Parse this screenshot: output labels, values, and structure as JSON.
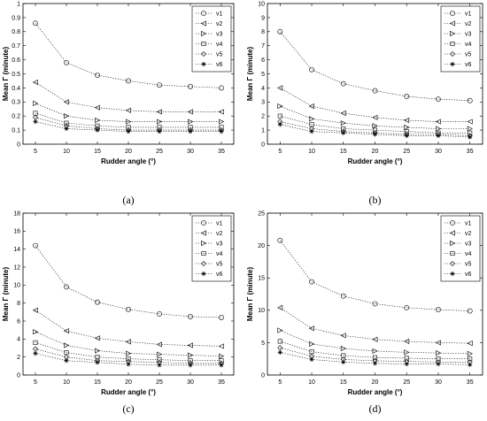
{
  "chart_data": [
    {
      "type": "line",
      "caption": "(a)",
      "xlabel": "Rudder angle (°)",
      "ylabel": "Mean Γ (minute)",
      "x": [
        5,
        10,
        15,
        20,
        25,
        30,
        35
      ],
      "xlim": [
        3,
        37
      ],
      "ylim": [
        0,
        1
      ],
      "yticks": [
        "0",
        "0.1",
        "0.2",
        "0.3",
        "0.4",
        "0.5",
        "0.6",
        "0.7",
        "0.8",
        "0.9",
        "1"
      ],
      "ytick_values": [
        0,
        0.1,
        0.2,
        0.3,
        0.4,
        0.5,
        0.6,
        0.7,
        0.8,
        0.9,
        1
      ],
      "xticks": [
        "5",
        "10",
        "15",
        "20",
        "25",
        "30",
        "35"
      ],
      "legend_position": "top-right",
      "series": [
        {
          "name": "v1",
          "marker": "circle",
          "values": [
            0.86,
            0.58,
            0.49,
            0.45,
            0.42,
            0.41,
            0.4
          ]
        },
        {
          "name": "v2",
          "marker": "triangle-left",
          "values": [
            0.44,
            0.3,
            0.26,
            0.24,
            0.23,
            0.23,
            0.23
          ]
        },
        {
          "name": "v3",
          "marker": "triangle-right",
          "values": [
            0.29,
            0.2,
            0.17,
            0.16,
            0.16,
            0.16,
            0.16
          ]
        },
        {
          "name": "v4",
          "marker": "square",
          "values": [
            0.22,
            0.15,
            0.13,
            0.12,
            0.12,
            0.12,
            0.12
          ]
        },
        {
          "name": "v5",
          "marker": "diamond",
          "values": [
            0.19,
            0.13,
            0.11,
            0.1,
            0.1,
            0.1,
            0.1
          ]
        },
        {
          "name": "v6",
          "marker": "star",
          "values": [
            0.16,
            0.11,
            0.1,
            0.09,
            0.09,
            0.09,
            0.09
          ]
        }
      ]
    },
    {
      "type": "line",
      "caption": "(b)",
      "xlabel": "Rudder angle (°)",
      "ylabel": "Mean Γ (minute)",
      "x": [
        5,
        10,
        15,
        20,
        25,
        30,
        35
      ],
      "xlim": [
        3,
        37
      ],
      "ylim": [
        0,
        10
      ],
      "yticks": [
        "0",
        "1",
        "2",
        "3",
        "4",
        "5",
        "6",
        "7",
        "8",
        "9",
        "10"
      ],
      "ytick_values": [
        0,
        1,
        2,
        3,
        4,
        5,
        6,
        7,
        8,
        9,
        10
      ],
      "xticks": [
        "5",
        "10",
        "15",
        "20",
        "25",
        "30",
        "35"
      ],
      "legend_position": "top-right",
      "series": [
        {
          "name": "v1",
          "marker": "circle",
          "values": [
            8.0,
            5.3,
            4.3,
            3.8,
            3.4,
            3.2,
            3.1
          ]
        },
        {
          "name": "v2",
          "marker": "triangle-left",
          "values": [
            4.0,
            2.7,
            2.2,
            1.9,
            1.7,
            1.6,
            1.6
          ]
        },
        {
          "name": "v3",
          "marker": "triangle-right",
          "values": [
            2.7,
            1.8,
            1.5,
            1.3,
            1.2,
            1.1,
            1.1
          ]
        },
        {
          "name": "v4",
          "marker": "square",
          "values": [
            2.0,
            1.4,
            1.1,
            1.0,
            0.9,
            0.8,
            0.8
          ]
        },
        {
          "name": "v5",
          "marker": "diamond",
          "values": [
            1.6,
            1.1,
            0.9,
            0.8,
            0.7,
            0.7,
            0.6
          ]
        },
        {
          "name": "v6",
          "marker": "star",
          "values": [
            1.4,
            0.9,
            0.8,
            0.7,
            0.6,
            0.6,
            0.5
          ]
        }
      ]
    },
    {
      "type": "line",
      "caption": "(c)",
      "xlabel": "Rudder angle (°)",
      "ylabel": "Mean Γ (minute)",
      "x": [
        5,
        10,
        15,
        20,
        25,
        30,
        35
      ],
      "xlim": [
        3,
        37
      ],
      "ylim": [
        0,
        18
      ],
      "yticks": [
        "0",
        "2",
        "4",
        "6",
        "8",
        "10",
        "12",
        "14",
        "16",
        "18"
      ],
      "ytick_values": [
        0,
        2,
        4,
        6,
        8,
        10,
        12,
        14,
        16,
        18
      ],
      "xticks": [
        "5",
        "10",
        "15",
        "20",
        "25",
        "30",
        "35"
      ],
      "legend_position": "top-right",
      "series": [
        {
          "name": "v1",
          "marker": "circle",
          "values": [
            14.4,
            9.8,
            8.1,
            7.3,
            6.8,
            6.5,
            6.4
          ]
        },
        {
          "name": "v2",
          "marker": "triangle-left",
          "values": [
            7.2,
            4.9,
            4.1,
            3.7,
            3.4,
            3.3,
            3.2
          ]
        },
        {
          "name": "v3",
          "marker": "triangle-right",
          "values": [
            4.8,
            3.3,
            2.7,
            2.4,
            2.3,
            2.2,
            2.1
          ]
        },
        {
          "name": "v4",
          "marker": "square",
          "values": [
            3.6,
            2.5,
            2.0,
            1.8,
            1.7,
            1.6,
            1.6
          ]
        },
        {
          "name": "v5",
          "marker": "diamond",
          "values": [
            2.9,
            2.0,
            1.6,
            1.5,
            1.4,
            1.3,
            1.3
          ]
        },
        {
          "name": "v6",
          "marker": "star",
          "values": [
            2.4,
            1.6,
            1.4,
            1.2,
            1.1,
            1.1,
            1.1
          ]
        }
      ]
    },
    {
      "type": "line",
      "caption": "(d)",
      "xlabel": "Rudder angle (°)",
      "ylabel": "Mean Γ (minute)",
      "x": [
        5,
        10,
        15,
        20,
        25,
        30,
        35
      ],
      "xlim": [
        3,
        37
      ],
      "ylim": [
        0,
        25
      ],
      "yticks": [
        "0",
        "5",
        "10",
        "15",
        "20",
        "25"
      ],
      "ytick_values": [
        0,
        5,
        10,
        15,
        20,
        25
      ],
      "xticks": [
        "5",
        "10",
        "15",
        "20",
        "25",
        "30",
        "35"
      ],
      "legend_position": "top-right",
      "series": [
        {
          "name": "v1",
          "marker": "circle",
          "values": [
            20.8,
            14.4,
            12.2,
            11.0,
            10.4,
            10.1,
            9.9
          ]
        },
        {
          "name": "v2",
          "marker": "triangle-left",
          "values": [
            10.4,
            7.2,
            6.1,
            5.5,
            5.2,
            5.0,
            4.9
          ]
        },
        {
          "name": "v3",
          "marker": "triangle-right",
          "values": [
            6.9,
            4.8,
            4.1,
            3.7,
            3.5,
            3.4,
            3.3
          ]
        },
        {
          "name": "v4",
          "marker": "square",
          "values": [
            5.2,
            3.6,
            3.0,
            2.7,
            2.6,
            2.5,
            2.5
          ]
        },
        {
          "name": "v5",
          "marker": "diamond",
          "values": [
            4.2,
            2.9,
            2.4,
            2.2,
            2.1,
            2.0,
            2.0
          ]
        },
        {
          "name": "v6",
          "marker": "star",
          "values": [
            3.5,
            2.4,
            2.0,
            1.8,
            1.7,
            1.7,
            1.6
          ]
        }
      ]
    }
  ]
}
